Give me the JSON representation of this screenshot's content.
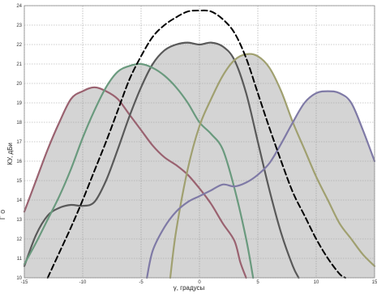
{
  "side_text": "Г    о",
  "chart_data": {
    "type": "line",
    "title": "",
    "xlabel": "γ, градусы",
    "ylabel": "КУ, дБи",
    "xlim": [
      -15,
      15
    ],
    "ylim": [
      10,
      24
    ],
    "grid": true,
    "x_ticks": [
      -15,
      -10,
      -5,
      0,
      5,
      10,
      15
    ],
    "y_ticks": [
      10,
      11,
      12,
      13,
      14,
      15,
      16,
      17,
      18,
      19,
      20,
      21,
      22,
      23,
      24
    ],
    "envelope_fill": "#d4d4d4",
    "series": [
      {
        "color": "#9a6270",
        "dashed": false,
        "points": [
          [
            -15,
            13.4
          ],
          [
            -14,
            15.0
          ],
          [
            -13,
            16.6
          ],
          [
            -12,
            18.0
          ],
          [
            -11,
            19.2
          ],
          [
            -10,
            19.6
          ],
          [
            -9,
            19.8
          ],
          [
            -8,
            19.6
          ],
          [
            -7,
            19.2
          ],
          [
            -6,
            18.4
          ],
          [
            -5,
            17.6
          ],
          [
            -4,
            16.8
          ],
          [
            -3,
            16.2
          ],
          [
            -2,
            15.8
          ],
          [
            -1,
            15.3
          ],
          [
            0,
            14.6
          ],
          [
            1,
            13.8
          ],
          [
            2,
            12.8
          ],
          [
            3,
            11.9
          ],
          [
            3.5,
            10.8
          ],
          [
            4,
            10.0
          ]
        ]
      },
      {
        "color": "#595959",
        "dashed": false,
        "points": [
          [
            -15,
            10.6
          ],
          [
            -14,
            12.2
          ],
          [
            -13,
            13.2
          ],
          [
            -12,
            13.6
          ],
          [
            -11,
            13.75
          ],
          [
            -10,
            13.7
          ],
          [
            -9,
            13.9
          ],
          [
            -8,
            15.0
          ],
          [
            -7,
            16.6
          ],
          [
            -6,
            18.3
          ],
          [
            -5,
            19.8
          ],
          [
            -4,
            21.0
          ],
          [
            -3,
            21.7
          ],
          [
            -2,
            22.0
          ],
          [
            -1,
            22.1
          ],
          [
            0,
            22.0
          ],
          [
            1,
            22.1
          ],
          [
            2,
            21.9
          ],
          [
            3,
            21.2
          ],
          [
            4,
            19.5
          ],
          [
            5,
            17.0
          ],
          [
            6,
            14.5
          ],
          [
            7,
            12.3
          ],
          [
            8,
            10.6
          ],
          [
            8.5,
            10.0
          ]
        ]
      },
      {
        "color": "#6a9a7e",
        "dashed": false,
        "points": [
          [
            -15,
            10.7
          ],
          [
            -14,
            11.8
          ],
          [
            -13,
            13.0
          ],
          [
            -12,
            14.2
          ],
          [
            -11,
            15.6
          ],
          [
            -10,
            17.2
          ],
          [
            -9,
            18.6
          ],
          [
            -8,
            19.8
          ],
          [
            -7,
            20.6
          ],
          [
            -6,
            20.9
          ],
          [
            -5,
            21.0
          ],
          [
            -4,
            20.8
          ],
          [
            -3,
            20.4
          ],
          [
            -2,
            19.8
          ],
          [
            -1,
            19.0
          ],
          [
            0,
            18.0
          ],
          [
            1,
            17.4
          ],
          [
            2,
            16.6
          ],
          [
            3,
            14.6
          ],
          [
            4,
            12.0
          ],
          [
            4.6,
            10.0
          ]
        ]
      },
      {
        "color": "#a0a070",
        "dashed": false,
        "points": [
          [
            -2.5,
            10.0
          ],
          [
            -2,
            12.4
          ],
          [
            -1,
            15.6
          ],
          [
            0,
            17.8
          ],
          [
            1,
            19.2
          ],
          [
            2,
            20.4
          ],
          [
            3,
            21.2
          ],
          [
            4,
            21.5
          ],
          [
            5,
            21.4
          ],
          [
            6,
            20.8
          ],
          [
            7,
            19.6
          ],
          [
            8,
            18.0
          ],
          [
            9,
            16.6
          ],
          [
            10,
            15.2
          ],
          [
            11,
            14.0
          ],
          [
            12,
            12.8
          ],
          [
            13,
            12.0
          ],
          [
            14,
            11.2
          ],
          [
            15,
            10.6
          ]
        ]
      },
      {
        "color": "#7f7aa6",
        "dashed": false,
        "points": [
          [
            -4.5,
            10.0
          ],
          [
            -4,
            11.4
          ],
          [
            -3,
            12.6
          ],
          [
            -2,
            13.4
          ],
          [
            -1,
            13.9
          ],
          [
            0,
            14.2
          ],
          [
            1,
            14.5
          ],
          [
            2,
            14.8
          ],
          [
            3,
            14.7
          ],
          [
            4,
            14.9
          ],
          [
            5,
            15.3
          ],
          [
            6,
            15.9
          ],
          [
            7,
            16.9
          ],
          [
            8,
            18.0
          ],
          [
            9,
            19.0
          ],
          [
            10,
            19.5
          ],
          [
            11,
            19.6
          ],
          [
            12,
            19.5
          ],
          [
            13,
            19.0
          ],
          [
            14,
            17.6
          ],
          [
            15,
            16.0
          ]
        ]
      },
      {
        "color": "#000000",
        "dashed": true,
        "points": [
          [
            -13,
            10.0
          ],
          [
            -12,
            11.3
          ],
          [
            -11,
            12.6
          ],
          [
            -10,
            14.0
          ],
          [
            -9,
            15.5
          ],
          [
            -8,
            17.0
          ],
          [
            -7,
            18.6
          ],
          [
            -6,
            20.2
          ],
          [
            -5,
            21.4
          ],
          [
            -4,
            22.4
          ],
          [
            -3,
            23.0
          ],
          [
            -2,
            23.4
          ],
          [
            -1,
            23.7
          ],
          [
            0,
            23.75
          ],
          [
            1,
            23.7
          ],
          [
            2,
            23.3
          ],
          [
            3,
            22.6
          ],
          [
            4,
            21.3
          ],
          [
            5,
            19.5
          ],
          [
            6,
            17.7
          ],
          [
            7,
            16.0
          ],
          [
            8,
            14.4
          ],
          [
            9,
            13.2
          ],
          [
            10,
            12.0
          ],
          [
            11,
            11.0
          ],
          [
            12,
            10.2
          ],
          [
            12.5,
            10.0
          ]
        ]
      }
    ]
  }
}
